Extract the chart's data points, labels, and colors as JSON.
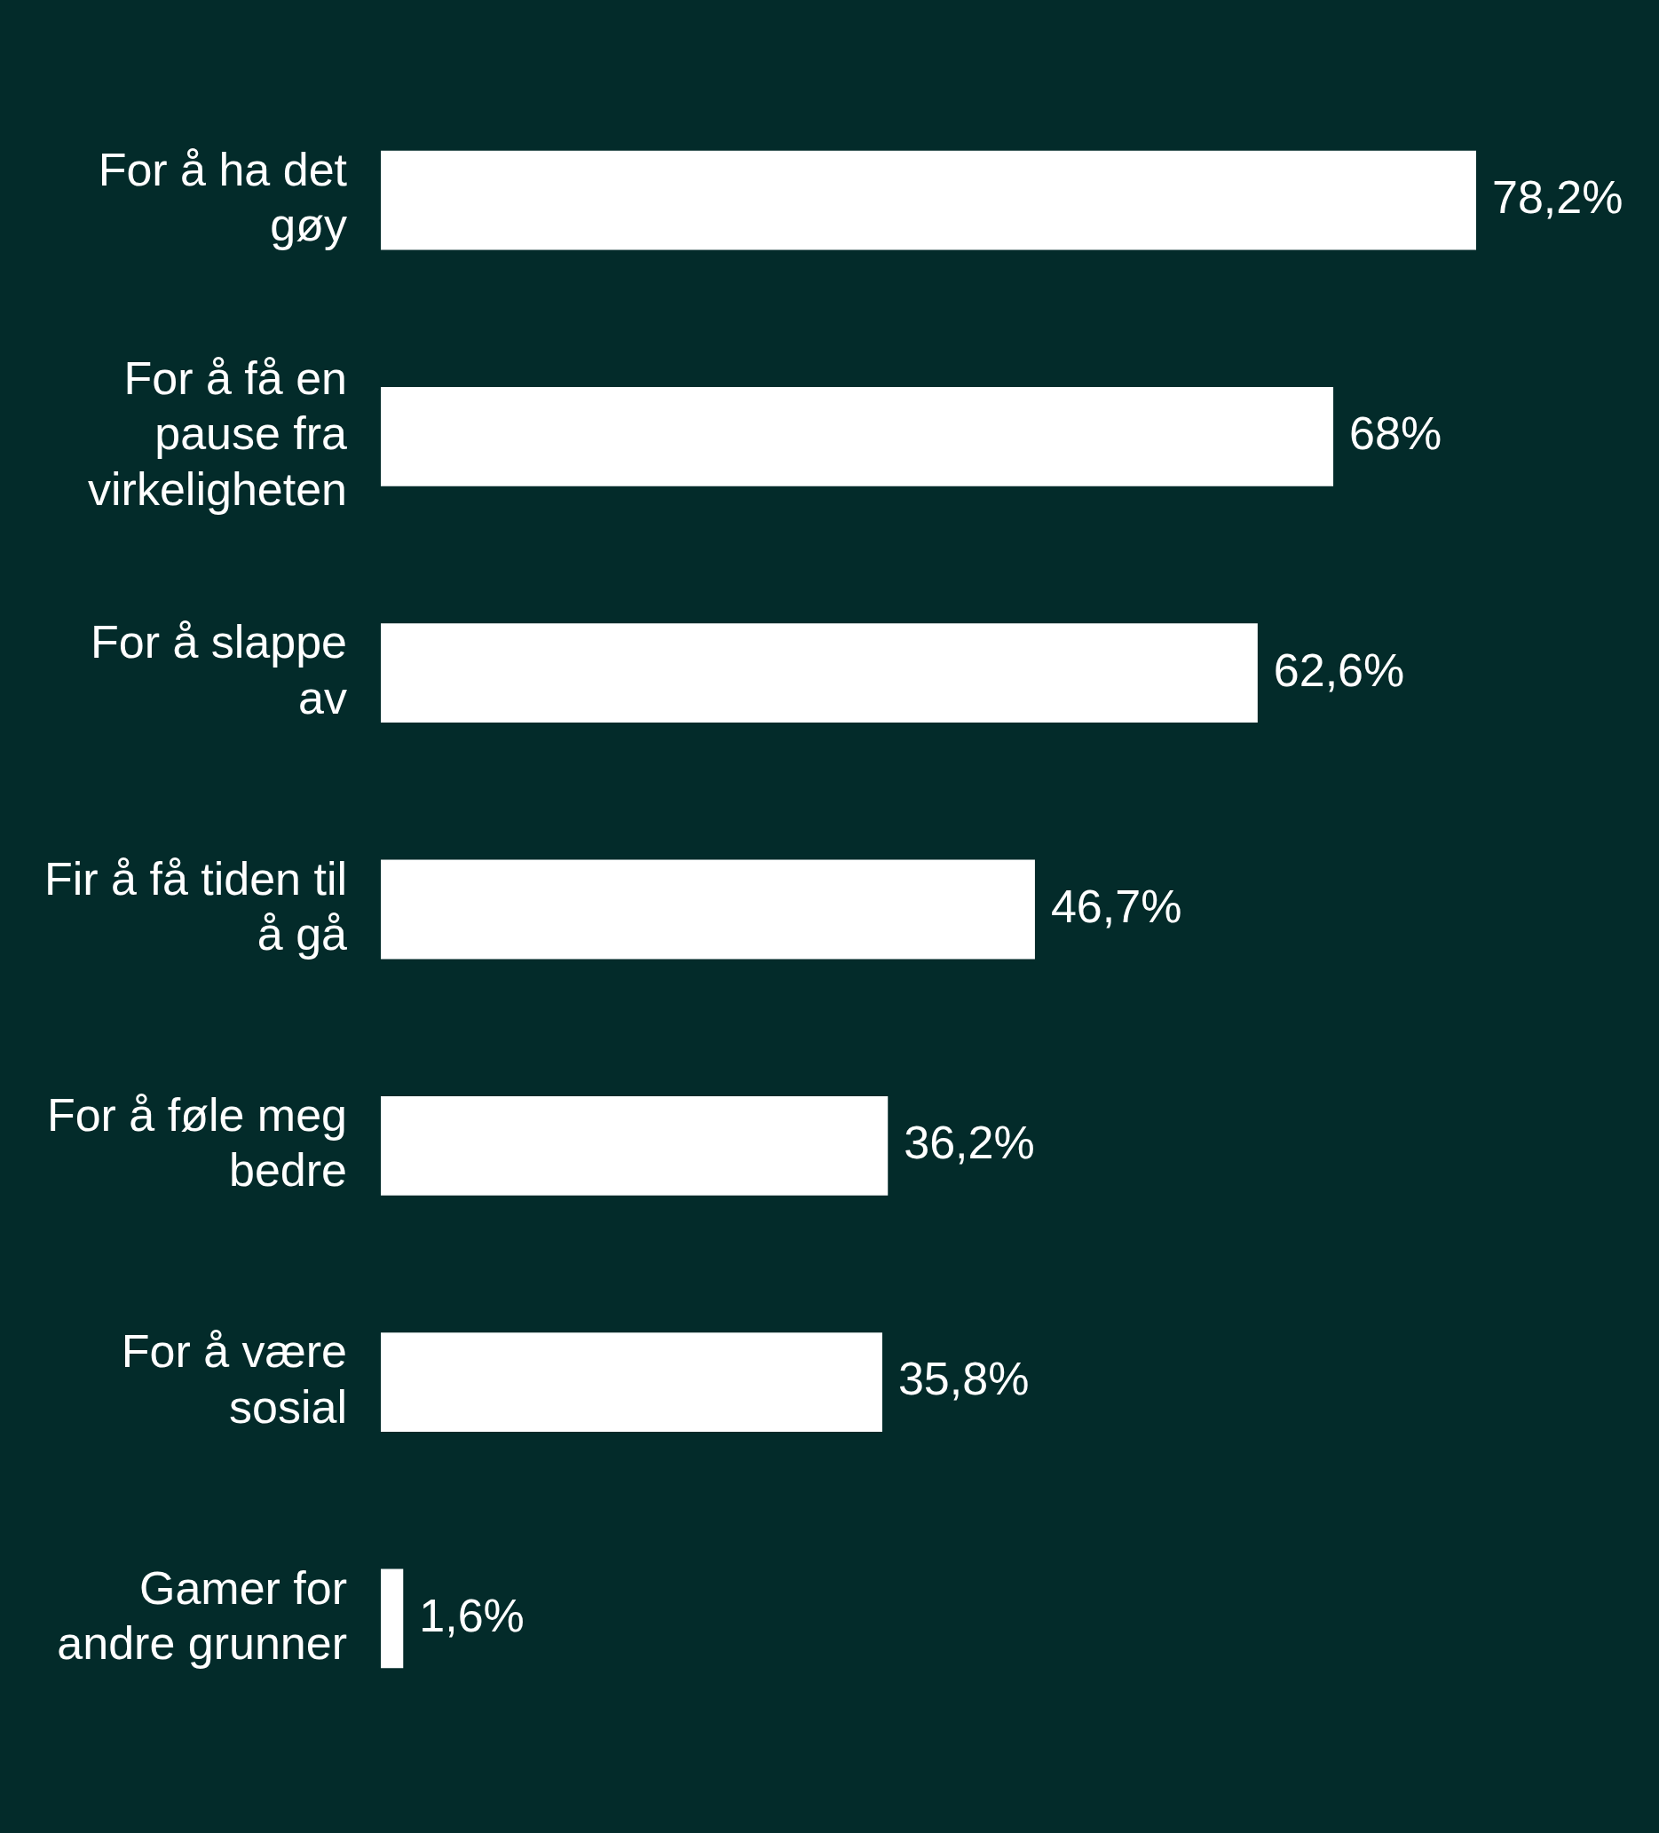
{
  "chart_data": {
    "type": "bar",
    "orientation": "horizontal",
    "categories": [
      "For å ha det gøy",
      "For å få en pause fra virkeligheten",
      "For å slappe av",
      "Fir å få tiden til å gå",
      "For å føle meg bedre",
      "For å være sosial",
      "Gamer for andre grunner"
    ],
    "values": [
      78.2,
      68,
      62.6,
      46.7,
      36.2,
      35.8,
      1.6
    ],
    "value_labels": [
      "78,2%",
      "68%",
      "62,6%",
      "46,7%",
      "36,2%",
      "35,8%",
      "1,6%"
    ],
    "color": "#ffffff",
    "tick_labels": "y",
    "legend": false
  }
}
